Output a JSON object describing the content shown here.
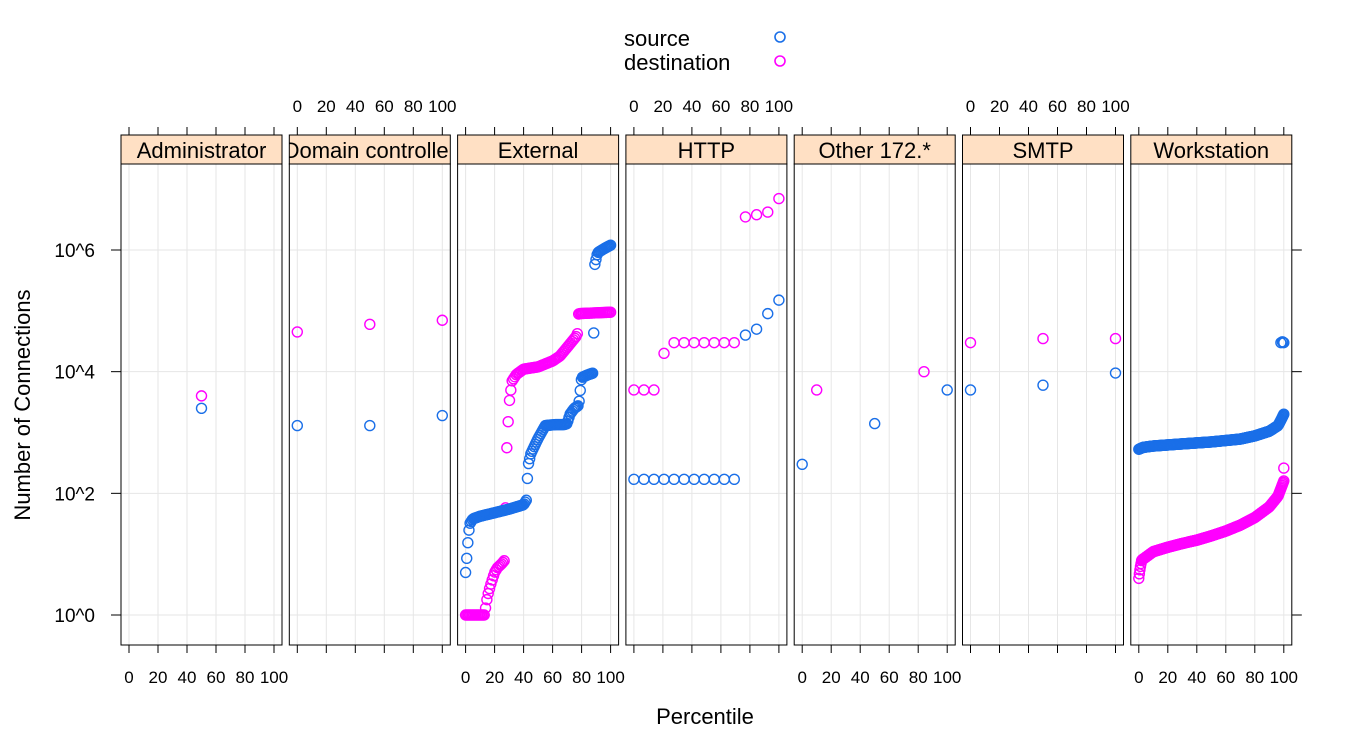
{
  "chart_data": {
    "type": "scatter",
    "title": "",
    "xlabel": "Percentile",
    "ylabel": "Number of Connections",
    "xlim": [
      0,
      100
    ],
    "ylog": true,
    "ylim": [
      1,
      10000000
    ],
    "x_ticks": [
      "0",
      "20",
      "40",
      "60",
      "80",
      "100"
    ],
    "y_ticks": [
      {
        "value": 1,
        "label": "10^0"
      },
      {
        "value": 100,
        "label": "10^2"
      },
      {
        "value": 10000,
        "label": "10^4"
      },
      {
        "value": 1000000,
        "label": "10^6"
      }
    ],
    "grid": true,
    "legend_position": "top-center",
    "series_styles": [
      {
        "name": "source",
        "color": "#1a6fe8"
      },
      {
        "name": "destination",
        "color": "#ff00ff"
      }
    ],
    "strip_color": "#ffe0c4",
    "panels": [
      {
        "label": "Administrator",
        "source": {
          "x": [
            50
          ],
          "y": [
            2500
          ]
        },
        "destination": {
          "x": [
            50
          ],
          "y": [
            4000
          ]
        }
      },
      {
        "label": "Domain controller",
        "source": {
          "x": [
            0,
            50,
            100
          ],
          "y": [
            1300,
            1300,
            1900
          ]
        },
        "destination": {
          "x": [
            0,
            50,
            100
          ],
          "y": [
            45000,
            60000,
            70000
          ]
        }
      },
      {
        "label": "External",
        "source": {
          "gen": [
            [
              0,
              5
            ],
            [
              1,
              10
            ],
            [
              2,
              22
            ],
            [
              3,
              32
            ],
            [
              5,
              38
            ],
            [
              10,
              42
            ],
            [
              20,
              48
            ],
            [
              30,
              55
            ],
            [
              40,
              65
            ],
            [
              42,
              78
            ],
            [
              43,
              280
            ],
            [
              45,
              450
            ],
            [
              50,
              800
            ],
            [
              55,
              1300
            ],
            [
              62,
              1350
            ],
            [
              68,
              1350
            ],
            [
              70,
              1400
            ],
            [
              72,
              2000
            ],
            [
              75,
              2500
            ],
            [
              78,
              2800
            ],
            [
              80,
              8000
            ],
            [
              85,
              9000
            ],
            [
              88,
              9500
            ],
            [
              89,
              560000
            ],
            [
              91,
              900000
            ],
            [
              94,
              1000000
            ],
            [
              97,
              1100000
            ],
            [
              100,
              1200000
            ]
          ],
          "n": 130
        },
        "destination": {
          "gen": [
            [
              0,
              1
            ],
            [
              10,
              1
            ],
            [
              13,
              1
            ],
            [
              15,
              2
            ],
            [
              17,
              3
            ],
            [
              20,
              5
            ],
            [
              22,
              6
            ],
            [
              25,
              7
            ],
            [
              27,
              8
            ],
            [
              28,
              350
            ],
            [
              30,
              3000
            ],
            [
              32,
              7000
            ],
            [
              35,
              9000
            ],
            [
              40,
              11000
            ],
            [
              50,
              12000
            ],
            [
              60,
              15000
            ],
            [
              65,
              18000
            ],
            [
              70,
              25000
            ],
            [
              75,
              35000
            ],
            [
              77,
              40000
            ],
            [
              78,
              90000
            ],
            [
              100,
              95000
            ]
          ],
          "n": 110
        }
      },
      {
        "label": "HTTP",
        "source": {
          "x": [
            0,
            9,
            18,
            27,
            36,
            45,
            54,
            63,
            72,
            81,
            90,
            100,
            110,
            120,
            130
          ],
          "y": [
            170,
            170,
            170,
            170,
            170,
            170,
            170,
            170,
            170,
            170,
            170,
            40000,
            50000,
            90000,
            150000
          ]
        },
        "destination": {
          "x": [
            0,
            9,
            18,
            27,
            36,
            45,
            54,
            63,
            72,
            81,
            90,
            100,
            110,
            120,
            130
          ],
          "y": [
            5000,
            5000,
            5000,
            20000,
            30000,
            30000,
            30000,
            30000,
            30000,
            30000,
            30000,
            3500000,
            3800000,
            4200000,
            7000000
          ]
        }
      },
      {
        "label": "Other 172.*",
        "source": {
          "x": [
            0,
            50,
            100
          ],
          "y": [
            300,
            1400,
            5000
          ]
        },
        "destination": {
          "x": [
            10,
            84
          ],
          "y": [
            5000,
            10000
          ]
        }
      },
      {
        "label": "SMTP",
        "source": {
          "x": [
            0,
            50,
            100
          ],
          "y": [
            5000,
            6000,
            9500
          ]
        },
        "destination": {
          "x": [
            0,
            50,
            100
          ],
          "y": [
            30000,
            35000,
            35000
          ]
        }
      },
      {
        "label": "Workstation",
        "source": {
          "gen": [
            [
              0,
              530
            ],
            [
              3,
              570
            ],
            [
              10,
              600
            ],
            [
              30,
              650
            ],
            [
              50,
              700
            ],
            [
              70,
              780
            ],
            [
              80,
              880
            ],
            [
              90,
              1050
            ],
            [
              96,
              1300
            ],
            [
              98,
              1600
            ],
            [
              100,
              2000
            ]
          ],
          "n": 260,
          "extra_x": [
            98,
            99,
            100,
            99.5
          ],
          "extra_y": [
            30000,
            31000,
            30000,
            30500
          ]
        },
        "destination": {
          "gen": [
            [
              0,
              4
            ],
            [
              0.5,
              5
            ],
            [
              1,
              6
            ],
            [
              2,
              8
            ],
            [
              5,
              9
            ],
            [
              10,
              11
            ],
            [
              20,
              13
            ],
            [
              30,
              15
            ],
            [
              40,
              17
            ],
            [
              50,
              20
            ],
            [
              60,
              24
            ],
            [
              70,
              30
            ],
            [
              80,
              40
            ],
            [
              90,
              60
            ],
            [
              96,
              90
            ],
            [
              98,
              120
            ],
            [
              100,
              160
            ]
          ],
          "n": 260,
          "extra_x": [
            100
          ],
          "extra_y": [
            260
          ]
        }
      }
    ]
  }
}
